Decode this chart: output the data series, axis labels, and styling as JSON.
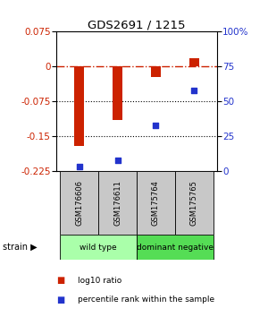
{
  "title": "GDS2691 / 1215",
  "samples": [
    "GSM176606",
    "GSM176611",
    "GSM175764",
    "GSM175765"
  ],
  "log10_ratio": [
    -0.17,
    -0.115,
    -0.022,
    0.018
  ],
  "percentile_rank": [
    3,
    8,
    33,
    58
  ],
  "bar_color": "#cc2200",
  "dot_color": "#2233cc",
  "ylim_left": [
    -0.225,
    0.075
  ],
  "ylim_right": [
    0,
    100
  ],
  "yticks_left": [
    0.075,
    0,
    -0.075,
    -0.15,
    -0.225
  ],
  "yticks_right": [
    100,
    75,
    50,
    25,
    0
  ],
  "hline_0_color": "#cc2200",
  "hline_dotted_vals": [
    -0.075,
    -0.15
  ],
  "groups": [
    {
      "label": "wild type",
      "samples_idx": [
        0,
        1
      ],
      "color": "#aaffaa"
    },
    {
      "label": "dominant negative",
      "samples_idx": [
        2,
        3
      ],
      "color": "#55dd55"
    }
  ],
  "strain_label": "strain",
  "legend_bar_label": "log10 ratio",
  "legend_dot_label": "percentile rank within the sample",
  "background_color": "#ffffff",
  "plot_bg_color": "#ffffff",
  "sample_box_color": "#c8c8c8",
  "bar_width": 0.25
}
